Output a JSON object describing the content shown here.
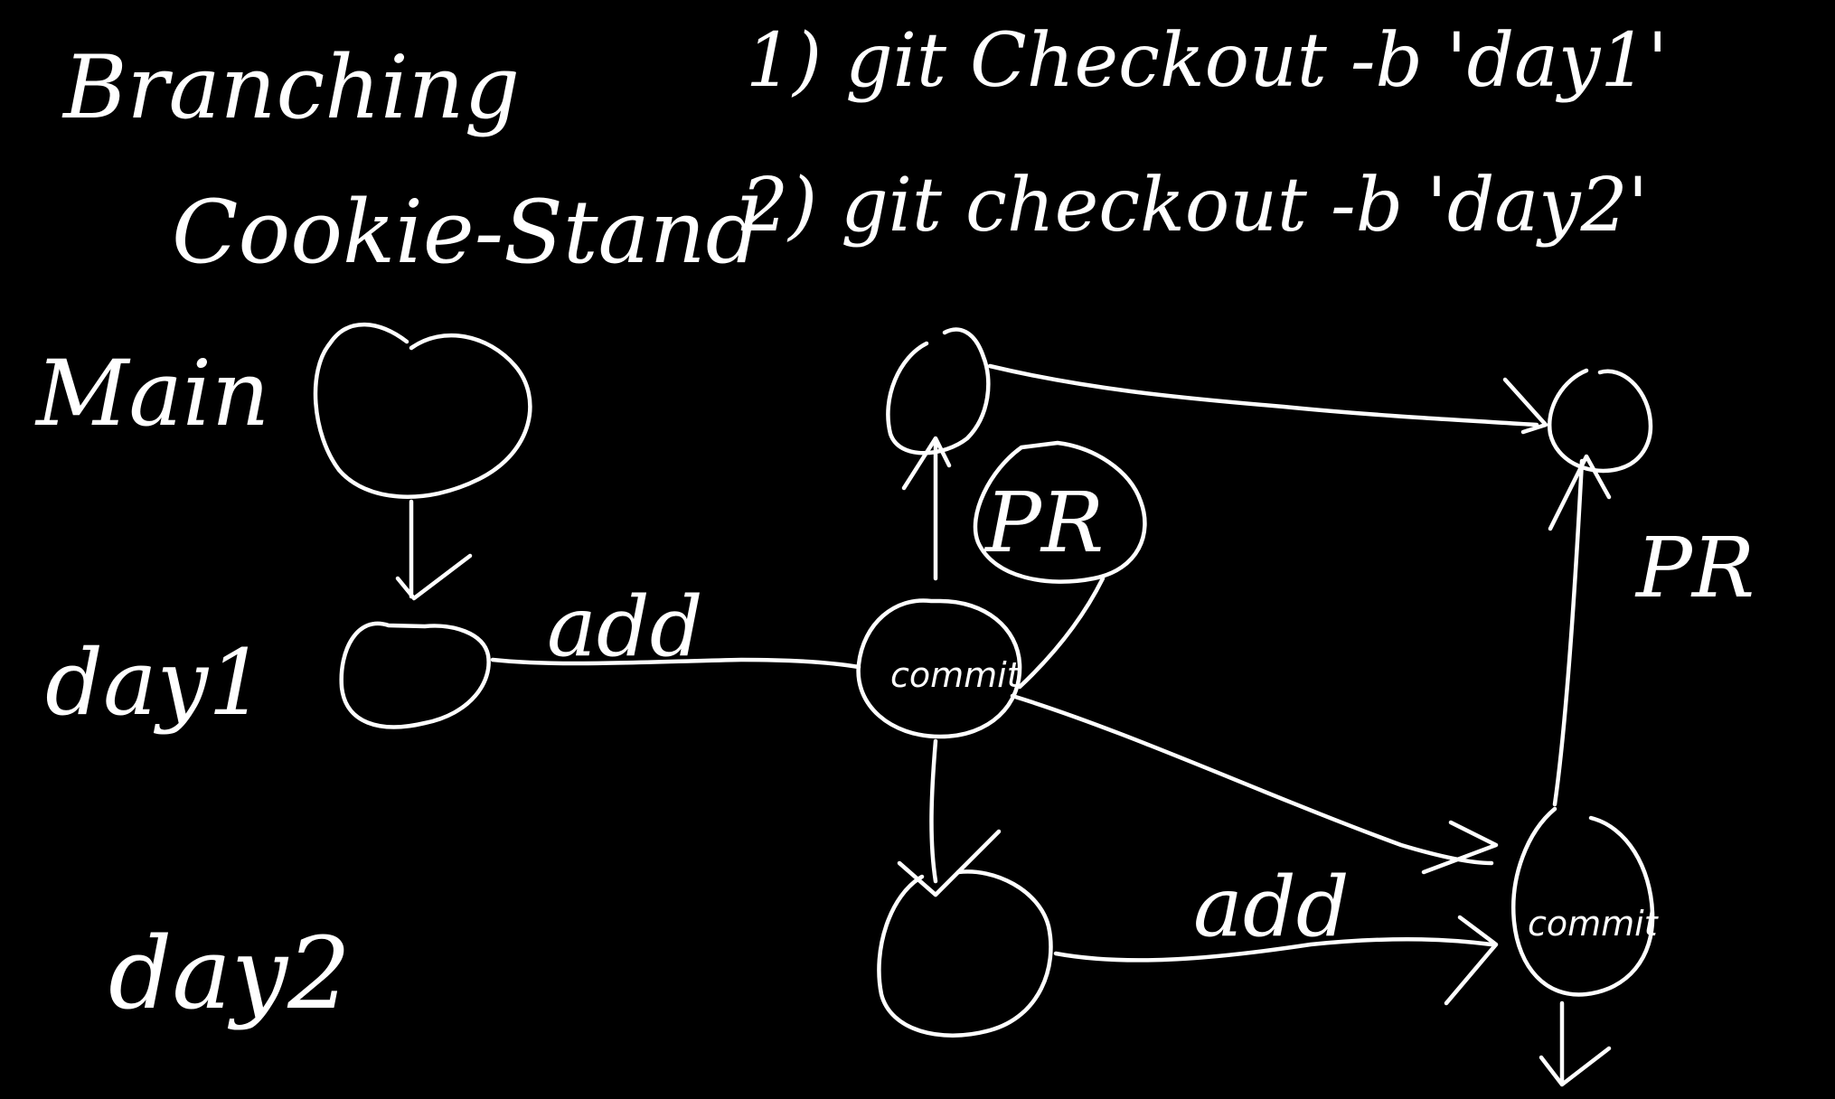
{
  "board": {
    "background_color": "#000000",
    "ink_color": "#ffffff"
  },
  "title": {
    "line1": "Branching",
    "line2": "Cookie-Stand"
  },
  "steps": [
    "1) git Checkout -b 'day1'",
    "2) git checkout -b 'day2'"
  ],
  "branches": {
    "main": "Main",
    "day1": "day1",
    "day2": "day2"
  },
  "edge_labels": {
    "add_day1": "add",
    "add_day2": "add"
  },
  "node_labels": {
    "commit_day1": "commit",
    "commit_day2": "commit"
  },
  "pr_labels": {
    "pr_first": "PR",
    "pr_second": "PR"
  }
}
